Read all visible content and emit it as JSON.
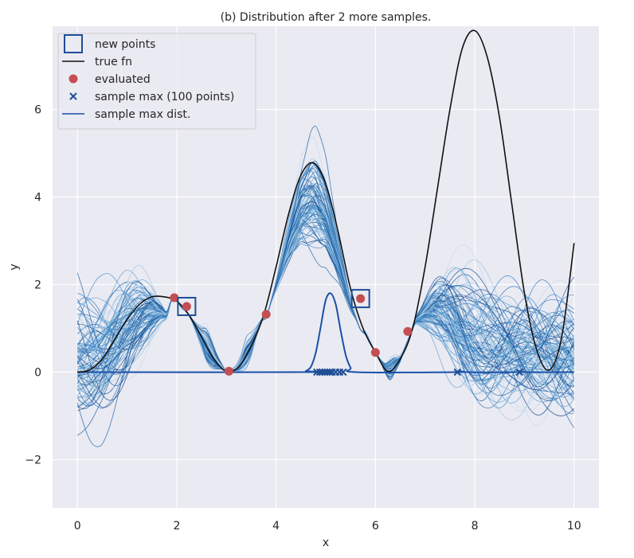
{
  "chart_data": {
    "type": "line",
    "title": "(b) Distribution after 2 more samples.",
    "xlabel": "x",
    "ylabel": "y",
    "xlim": [
      -0.5,
      10.5
    ],
    "ylim": [
      -3.1,
      7.9
    ],
    "xticks": [
      0,
      2,
      4,
      6,
      8,
      10
    ],
    "yticks": [
      -2,
      0,
      2,
      4,
      6
    ],
    "xtick_labels": [
      "0",
      "2",
      "4",
      "6",
      "8",
      "10"
    ],
    "ytick_labels": [
      "−2",
      "0",
      "2",
      "4",
      "6"
    ],
    "grid": true,
    "legend_position": "top-left",
    "legend": [
      {
        "label": "new points",
        "marker": "square",
        "color": "#1f4e96"
      },
      {
        "label": "true fn",
        "marker": "line",
        "color": "#111111"
      },
      {
        "label": "evaluated",
        "marker": "circle",
        "color": "#c44e52"
      },
      {
        "label": "sample max (100 points)",
        "marker": "x",
        "color": "#1f4e96"
      },
      {
        "label": "sample max dist.",
        "marker": "line",
        "color": "#1a50a8"
      }
    ],
    "true_fn": {
      "x": [
        0,
        0.25,
        0.5,
        0.75,
        1,
        1.25,
        1.5,
        1.75,
        2,
        2.25,
        2.5,
        2.75,
        3,
        3.25,
        3.5,
        3.75,
        4,
        4.25,
        4.5,
        4.75,
        5,
        5.25,
        5.5,
        5.75,
        6,
        6.25,
        6.5,
        6.75,
        7,
        7.25,
        7.5,
        7.75,
        8,
        8.25,
        8.5,
        8.75,
        9,
        9.25,
        9.5,
        9.75,
        10
      ],
      "y": [
        0,
        0.05,
        0.3,
        0.75,
        1.2,
        1.55,
        1.72,
        1.72,
        1.62,
        1.3,
        0.8,
        0.3,
        0.02,
        0.12,
        0.6,
        1.3,
        2.4,
        3.6,
        4.5,
        4.78,
        4.3,
        3.2,
        1.9,
        1.0,
        0.45,
        0.02,
        0.3,
        1.0,
        2.4,
        4.2,
        6.0,
        7.4,
        7.8,
        7.2,
        5.8,
        3.8,
        1.8,
        0.5,
        0.05,
        0.8,
        2.95
      ]
    },
    "evaluated": {
      "x": [
        1.95,
        2.2,
        3.05,
        3.8,
        5.7,
        6.0,
        6.65
      ],
      "y": [
        1.7,
        1.5,
        0.02,
        1.32,
        1.68,
        0.45,
        0.93
      ]
    },
    "new_points": {
      "x": [
        2.2,
        5.7
      ],
      "y": [
        1.5,
        1.68
      ]
    },
    "sample_max": {
      "x": [
        4.82,
        4.88,
        4.93,
        4.98,
        5.03,
        5.08,
        5.13,
        5.2,
        5.28,
        5.35,
        7.65,
        8.9
      ],
      "y": [
        0,
        0,
        0,
        0,
        0,
        0,
        0,
        0,
        0,
        0,
        0,
        0
      ]
    },
    "sample_max_dist": {
      "x": [
        0,
        4.5,
        4.6,
        4.7,
        4.8,
        4.9,
        5.0,
        5.1,
        5.2,
        5.3,
        5.4,
        5.5,
        5.6,
        7.6,
        7.7,
        7.8,
        8.8,
        8.9,
        9.0,
        10
      ],
      "y": [
        0,
        0,
        0.03,
        0.12,
        0.45,
        1.05,
        1.65,
        1.8,
        1.55,
        0.95,
        0.4,
        0.1,
        0,
        0,
        0.02,
        0,
        0,
        0.02,
        0,
        0
      ]
    },
    "posterior_samples_count": 100
  }
}
